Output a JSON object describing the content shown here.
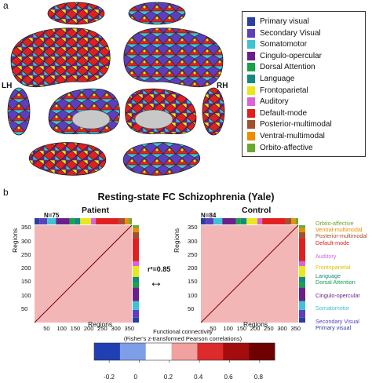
{
  "panel_a": {
    "label": "a",
    "lh": "LH",
    "rh": "RH",
    "legend": [
      {
        "label": "Primary visual",
        "color": "#2b3fa0"
      },
      {
        "label": "Secondary Visual",
        "color": "#5b3fbf"
      },
      {
        "label": "Somatomotor",
        "color": "#3fc2d4"
      },
      {
        "label": "Cingulo-opercular",
        "color": "#6b1f8a"
      },
      {
        "label": "Dorsal Attention",
        "color": "#16a34a"
      },
      {
        "label": "Language",
        "color": "#148a7c"
      },
      {
        "label": "Frontoparietal",
        "color": "#e8e81c"
      },
      {
        "label": "Auditory",
        "color": "#d765d6"
      },
      {
        "label": "Default-mode",
        "color": "#e02020"
      },
      {
        "label": "Posterior-multimodal",
        "color": "#a0522d"
      },
      {
        "label": "Ventral-multimodal",
        "color": "#f08c00"
      },
      {
        "label": "Orbito-affective",
        "color": "#6aa832"
      }
    ]
  },
  "panel_b": {
    "label": "b",
    "title": "Resting-state FC Schizophrenia (Yale)",
    "patient": {
      "n_label": "N=75",
      "title": "Patient"
    },
    "control": {
      "n_label": "N=84",
      "title": "Control"
    },
    "r2_label": "r²=0.85",
    "arrow": "↔",
    "y_axis_title": "Regions",
    "x_axis_title": "Regions",
    "x_ticks": [
      "50",
      "100",
      "150",
      "200",
      "250",
      "300",
      "350"
    ],
    "y_ticks": [
      "350",
      "300",
      "250",
      "200",
      "150",
      "100",
      "50"
    ],
    "right_labels": [
      {
        "label": "Orbito-affective",
        "color": "#6aa832"
      },
      {
        "label": "Ventral-multimodal",
        "color": "#f08c00"
      },
      {
        "label": "Posterior-multimodal",
        "color": "#a0522d"
      },
      {
        "label": "Default-mode",
        "color": "#e02020"
      },
      {
        "label": "Auditory",
        "color": "#d765d6"
      },
      {
        "label": "Frontoparietal",
        "color": "#d9c400"
      },
      {
        "label": "Language",
        "color": "#148a7c"
      },
      {
        "label": "Dorsal Attention",
        "color": "#16a34a"
      },
      {
        "label": "Cingulo-opercular",
        "color": "#6b1f8a"
      },
      {
        "label": "Somatomotor",
        "color": "#3fc2d4"
      },
      {
        "label": "Secondary Visual",
        "color": "#5b3fbf"
      },
      {
        "label": "Primary visual",
        "color": "#2b3fa0"
      }
    ],
    "colorbar": {
      "title_line1": "Functional connectivity",
      "title_line2": "(Fisher's z-transformed Pearson correlations)",
      "ticks": [
        "-0.2",
        "0",
        "0.2",
        "0.4",
        "0.6",
        "0.8"
      ],
      "range": [
        -0.3,
        0.9
      ]
    }
  }
}
